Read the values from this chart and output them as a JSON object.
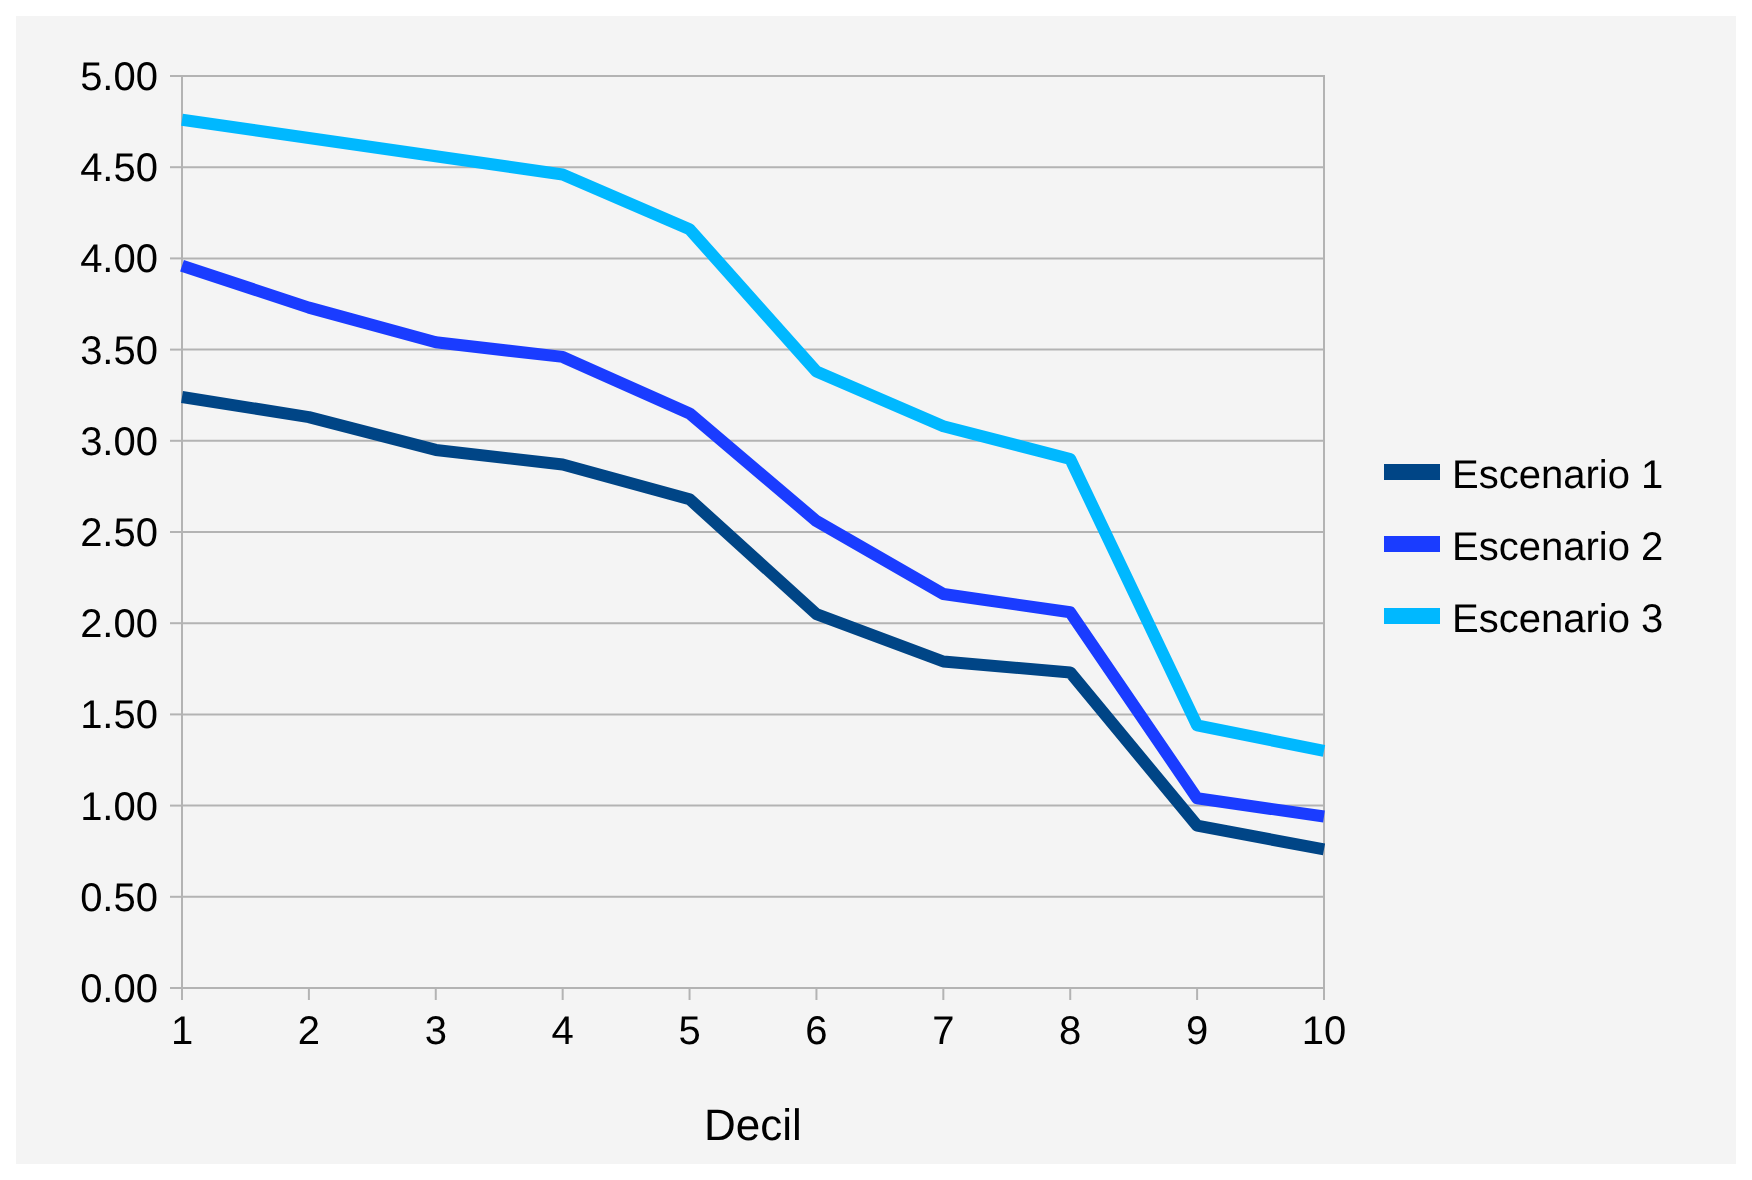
{
  "chart_data": {
    "type": "line",
    "xlabel": "Decil",
    "x": [
      1,
      2,
      3,
      4,
      5,
      6,
      7,
      8,
      9,
      10
    ],
    "xlim": [
      1,
      10
    ],
    "xticks": [
      1,
      2,
      3,
      4,
      5,
      6,
      7,
      8,
      9,
      10
    ],
    "ylim": [
      0,
      5
    ],
    "yticks": [
      {
        "value": 0,
        "label": "0.00"
      },
      {
        "value": 0.5,
        "label": "0.50"
      },
      {
        "value": 1,
        "label": "1.00"
      },
      {
        "value": 1.5,
        "label": "1.50"
      },
      {
        "value": 2,
        "label": "2.00"
      },
      {
        "value": 2.5,
        "label": "2.50"
      },
      {
        "value": 3,
        "label": "3.00"
      },
      {
        "value": 3.5,
        "label": "3.50"
      },
      {
        "value": 4,
        "label": "4.00"
      },
      {
        "value": 4.5,
        "label": "4.50"
      },
      {
        "value": 5,
        "label": "5.00"
      }
    ],
    "grid": "y",
    "legend": "right",
    "marker": "none",
    "line_style": "solid",
    "series": [
      {
        "name": "Escenario 1",
        "color": "#004586",
        "values": [
          3.24,
          3.13,
          2.95,
          2.87,
          2.68,
          2.05,
          1.79,
          1.73,
          0.89,
          0.76
        ]
      },
      {
        "name": "Escenario 2",
        "color": "#1a3cff",
        "values": [
          3.96,
          3.73,
          3.54,
          3.46,
          3.15,
          2.56,
          2.16,
          2.06,
          1.04,
          0.94
        ]
      },
      {
        "name": "Escenario 3",
        "color": "#00b8ff",
        "values": [
          4.76,
          4.66,
          4.56,
          4.46,
          4.16,
          3.38,
          3.08,
          2.9,
          1.44,
          1.3
        ]
      }
    ]
  }
}
